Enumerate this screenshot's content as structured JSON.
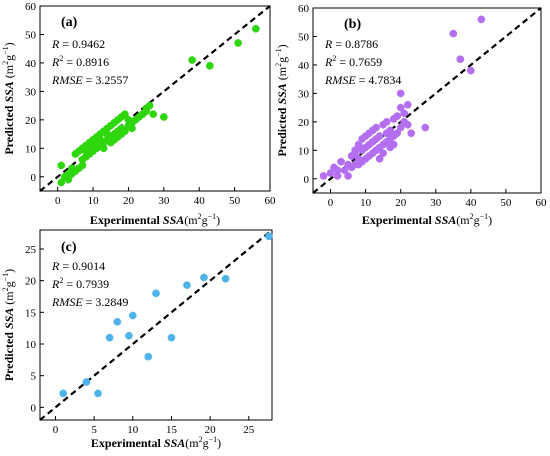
{
  "chart_data": [
    {
      "type": "scatter",
      "label": "(a)",
      "stats": {
        "r": "0.9462",
        "r2": "0.8916",
        "rmse": "3.2557"
      },
      "xlabel": {
        "pre": "Experimental",
        "var": "SSA",
        "unit": "(m",
        "exp": "2",
        "tail": "g",
        "exp2": "−1",
        "close": ")"
      },
      "ylabel": {
        "pre": "Predicted",
        "var": "SSA",
        "unit": "(m",
        "exp": "2",
        "tail": "g",
        "exp2": "−1",
        "close": ")"
      },
      "xlim": [
        -5,
        60
      ],
      "ylim": [
        -5,
        60
      ],
      "xticks": [
        0,
        10,
        20,
        30,
        40,
        50,
        60
      ],
      "yticks": [
        0,
        10,
        20,
        30,
        40,
        50,
        60
      ],
      "point_color": "#2ed60e",
      "points": [
        [
          1,
          4
        ],
        [
          1,
          -2
        ],
        [
          2,
          0
        ],
        [
          3,
          1
        ],
        [
          3,
          -1
        ],
        [
          4,
          1
        ],
        [
          4,
          3
        ],
        [
          5,
          2
        ],
        [
          5,
          8
        ],
        [
          6,
          3
        ],
        [
          6,
          9
        ],
        [
          7,
          4
        ],
        [
          7,
          10
        ],
        [
          7,
          6
        ],
        [
          8,
          11
        ],
        [
          8,
          7
        ],
        [
          8,
          9
        ],
        [
          9,
          12
        ],
        [
          9,
          8
        ],
        [
          9,
          10
        ],
        [
          10,
          11
        ],
        [
          10,
          13
        ],
        [
          10,
          9
        ],
        [
          11,
          14
        ],
        [
          11,
          10
        ],
        [
          11,
          12
        ],
        [
          12,
          15
        ],
        [
          12,
          11
        ],
        [
          12,
          13
        ],
        [
          13,
          16
        ],
        [
          13,
          12
        ],
        [
          13,
          10
        ],
        [
          14,
          17
        ],
        [
          14,
          13
        ],
        [
          14,
          15
        ],
        [
          15,
          18
        ],
        [
          15,
          12
        ],
        [
          15,
          14
        ],
        [
          16,
          19
        ],
        [
          16,
          13
        ],
        [
          16,
          15
        ],
        [
          17,
          20
        ],
        [
          17,
          14
        ],
        [
          17,
          16
        ],
        [
          18,
          21
        ],
        [
          18,
          15
        ],
        [
          18,
          17
        ],
        [
          19,
          22
        ],
        [
          19,
          16
        ],
        [
          20,
          18
        ],
        [
          20,
          20
        ],
        [
          21,
          17
        ],
        [
          21,
          19
        ],
        [
          22,
          20
        ],
        [
          23,
          21
        ],
        [
          24,
          22
        ],
        [
          25,
          23
        ],
        [
          25,
          24
        ],
        [
          26,
          25
        ],
        [
          27,
          22
        ],
        [
          30,
          21
        ],
        [
          38,
          41
        ],
        [
          43,
          39
        ],
        [
          51,
          47
        ],
        [
          56,
          52
        ]
      ]
    },
    {
      "type": "scatter",
      "label": "(b)",
      "stats": {
        "r": "0.8786",
        "r2": "0.7659",
        "rmse": "4.7834"
      },
      "xlabel": {
        "pre": "Experimental",
        "var": "SSA",
        "unit": "(m",
        "exp": "2",
        "tail": "g",
        "exp2": "−1",
        "close": ")"
      },
      "ylabel": {
        "pre": "Predicted",
        "var": "SSA",
        "unit": "(m",
        "exp": "2",
        "tail": "g",
        "exp2": "−1",
        "close": ")"
      },
      "xlim": [
        -5,
        60
      ],
      "ylim": [
        -5,
        60
      ],
      "xticks": [
        0,
        10,
        20,
        30,
        40,
        50,
        60
      ],
      "yticks": [
        0,
        10,
        20,
        30,
        40,
        50,
        60
      ],
      "point_color": "#b36ff0",
      "points": [
        [
          -2,
          1
        ],
        [
          0,
          2
        ],
        [
          1,
          4
        ],
        [
          2,
          1
        ],
        [
          2,
          3
        ],
        [
          3,
          6
        ],
        [
          4,
          3
        ],
        [
          5,
          1
        ],
        [
          5,
          5
        ],
        [
          6,
          8
        ],
        [
          6,
          4
        ],
        [
          7,
          9
        ],
        [
          7,
          5
        ],
        [
          7,
          10
        ],
        [
          8,
          7
        ],
        [
          8,
          12
        ],
        [
          8,
          5
        ],
        [
          9,
          14
        ],
        [
          9,
          10
        ],
        [
          9,
          6
        ],
        [
          10,
          15
        ],
        [
          10,
          11
        ],
        [
          10,
          7
        ],
        [
          11,
          16
        ],
        [
          11,
          12
        ],
        [
          11,
          8
        ],
        [
          12,
          13
        ],
        [
          12,
          9
        ],
        [
          12,
          17
        ],
        [
          13,
          14
        ],
        [
          13,
          10
        ],
        [
          13,
          18
        ],
        [
          14,
          11
        ],
        [
          14,
          15
        ],
        [
          14,
          7
        ],
        [
          15,
          19
        ],
        [
          15,
          12
        ],
        [
          15,
          9
        ],
        [
          16,
          16
        ],
        [
          16,
          13
        ],
        [
          16,
          20
        ],
        [
          17,
          17
        ],
        [
          17,
          14
        ],
        [
          17,
          11
        ],
        [
          18,
          21
        ],
        [
          18,
          15
        ],
        [
          18,
          12
        ],
        [
          19,
          22
        ],
        [
          19,
          16
        ],
        [
          20,
          25
        ],
        [
          20,
          30
        ],
        [
          20,
          18
        ],
        [
          21,
          20
        ],
        [
          21,
          23
        ],
        [
          22,
          26
        ],
        [
          22,
          19
        ],
        [
          23,
          16
        ],
        [
          27,
          18
        ],
        [
          35,
          51
        ],
        [
          37,
          42
        ],
        [
          40,
          38
        ],
        [
          43,
          56
        ]
      ]
    },
    {
      "type": "scatter",
      "label": "(c)",
      "stats": {
        "r": "0.9014",
        "r2": "0.7939",
        "rmse": "3.2849"
      },
      "xlabel": {
        "pre": "Experimental",
        "var": "SSA",
        "unit": "(m",
        "exp": "2",
        "tail": "g",
        "exp2": "−1",
        "close": ")"
      },
      "ylabel": {
        "pre": "Predicted",
        "var": "SSA",
        "unit": "(m",
        "exp": "2",
        "tail": "g",
        "exp2": "−1",
        "close": ")"
      },
      "xlim": [
        -2,
        28
      ],
      "ylim": [
        -2,
        28
      ],
      "xticks": [
        0,
        5,
        10,
        15,
        20,
        25
      ],
      "yticks": [
        0,
        5,
        10,
        15,
        20,
        25
      ],
      "point_color": "#4eb3ea",
      "points": [
        [
          1,
          2.2
        ],
        [
          4,
          4
        ],
        [
          5.5,
          2.2
        ],
        [
          7,
          11
        ],
        [
          8,
          13.5
        ],
        [
          9.5,
          11.3
        ],
        [
          10,
          14.5
        ],
        [
          12,
          8
        ],
        [
          13,
          18
        ],
        [
          15,
          11
        ],
        [
          17,
          19.3
        ],
        [
          19.2,
          20.5
        ],
        [
          22,
          20.3
        ],
        [
          27.6,
          27
        ]
      ]
    }
  ]
}
